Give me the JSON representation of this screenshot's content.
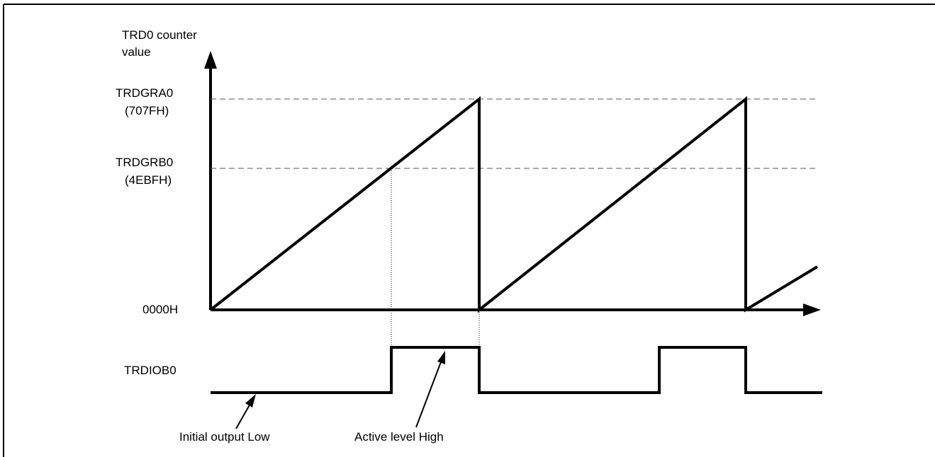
{
  "y_axis_title_line1": "TRD0 counter",
  "y_axis_title_line2": "value",
  "levels": {
    "trdgra0_name": "TRDGRA0",
    "trdgra0_value": "(707FH)",
    "trdgrb0_name": "TRDGRB0",
    "trdgrb0_value": "(4EBFH)",
    "zero": "0000H"
  },
  "output_signal_label": "TRDIOB0",
  "annotations": {
    "initial_output": "Initial output Low",
    "active_level": "Active level High"
  },
  "colors": {
    "line": "#000000",
    "background": "#ffffff"
  }
}
